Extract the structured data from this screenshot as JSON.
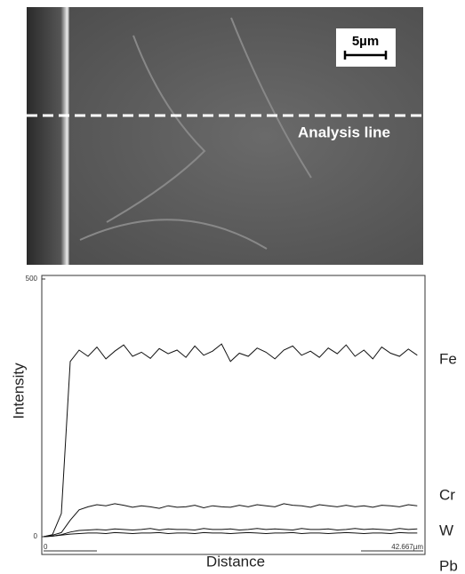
{
  "image": {
    "scale_bar": "5µm",
    "annotation": "Analysis line"
  },
  "chart_data": {
    "type": "line",
    "xlabel": "Distance",
    "ylabel": "Intensity",
    "xlim": [
      0,
      42.667
    ],
    "xticks": [
      0,
      {
        "value": 42.667,
        "label": "42.667µm"
      }
    ],
    "ylim": [
      0,
      500
    ],
    "yticks": [
      0,
      500
    ],
    "x": [
      0,
      1,
      2,
      3,
      4,
      5,
      6,
      7,
      8,
      9,
      10,
      11,
      12,
      13,
      14,
      15,
      16,
      17,
      18,
      19,
      20,
      21,
      22,
      23,
      24,
      25,
      26,
      27,
      28,
      29,
      30,
      31,
      32,
      33,
      34,
      35,
      36,
      37,
      38,
      39,
      40,
      41,
      42
    ],
    "series": [
      {
        "name": "Fe",
        "color": "#111111",
        "values": [
          0,
          4,
          45,
          340,
          362,
          350,
          368,
          345,
          360,
          372,
          350,
          358,
          346,
          365,
          355,
          362,
          348,
          370,
          352,
          360,
          374,
          340,
          356,
          350,
          366,
          358,
          345,
          362,
          370,
          352,
          360,
          348,
          366,
          355,
          372,
          350,
          362,
          345,
          368,
          356,
          350,
          364,
          352
        ]
      },
      {
        "name": "Cr",
        "color": "#111111",
        "values": [
          0,
          3,
          8,
          32,
          52,
          58,
          62,
          60,
          64,
          61,
          57,
          60,
          58,
          55,
          60,
          57,
          58,
          61,
          56,
          60,
          58,
          57,
          61,
          58,
          62,
          60,
          58,
          64,
          61,
          60,
          57,
          62,
          60,
          58,
          61,
          58,
          60,
          57,
          61,
          60,
          58,
          62,
          60
        ]
      },
      {
        "name": "W",
        "color": "#111111",
        "values": [
          0,
          1,
          4,
          9,
          12,
          13,
          14,
          13,
          15,
          14,
          13,
          14,
          16,
          13,
          15,
          14,
          14,
          13,
          16,
          14,
          14,
          15,
          13,
          14,
          16,
          14,
          15,
          14,
          13,
          16,
          14,
          14,
          15,
          13,
          14,
          16,
          14,
          15,
          14,
          13,
          16,
          14,
          15
        ]
      },
      {
        "name": "Pb",
        "color": "#111111",
        "values": [
          0,
          1,
          3,
          5,
          6,
          7,
          7,
          6,
          8,
          7,
          6,
          7,
          7,
          8,
          6,
          7,
          7,
          6,
          8,
          7,
          7,
          6,
          7,
          8,
          7,
          6,
          7,
          7,
          8,
          6,
          7,
          7,
          6,
          7,
          8,
          7,
          6,
          7,
          7,
          6,
          8,
          7,
          7
        ]
      }
    ]
  }
}
